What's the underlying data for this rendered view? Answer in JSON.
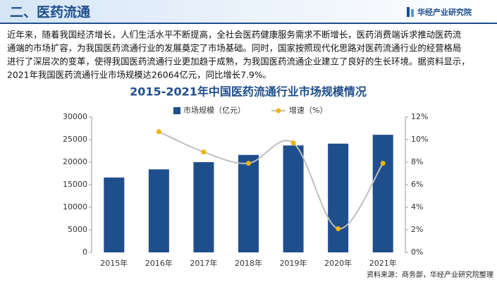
{
  "header": {
    "title": "二、医药流通",
    "brand": "华经产业研究院"
  },
  "paragraph": [
    "近年来，随着我国经济增长，人们生活水平不断提高，全社会医药健康服务需求不断增长，医药消费端诉求推动医药流",
    "通端的市场扩容，为我国医药流通行业的发展奠定了市场基础。同时，国家按照现代化思路对医药流通行业的经营格局",
    "进行了深层次的变革，使得我国医药流通行业更加趋于成熟，为我国医药流通企业建立了良好的生长环境。据资料显示，",
    "2021年我国医药流通行业市场规模达26064亿元，同比增长7.9%。"
  ],
  "chart_data": {
    "type": "bar",
    "title": "2015-2021年中国医药流通行业市场规模情况",
    "categories": [
      "2015年",
      "2016年",
      "2017年",
      "2018年",
      "2019年",
      "2020年",
      "2021年"
    ],
    "series": [
      {
        "name": "市场规模（亿元）",
        "color": "#1f4e8c",
        "values": [
          16600,
          18400,
          20000,
          21600,
          23700,
          24100,
          26064
        ]
      },
      {
        "name": "增速（%）",
        "color": "#f0b400",
        "line_color": "#bfbfbf",
        "axis": "y2",
        "values": [
          null,
          10.7,
          8.9,
          7.9,
          9.7,
          2.1,
          7.9
        ]
      }
    ],
    "ylim": [
      0,
      30000
    ],
    "yticks": [
      0,
      5000,
      10000,
      15000,
      20000,
      25000,
      30000
    ],
    "y2lim": [
      0,
      12
    ],
    "y2ticks": [
      {
        "value": 0,
        "label": "0%"
      },
      {
        "value": 2,
        "label": "2%"
      },
      {
        "value": 4,
        "label": "4%"
      },
      {
        "value": 6,
        "label": "6%"
      },
      {
        "value": 8,
        "label": "8%"
      },
      {
        "value": 10,
        "label": "10%"
      },
      {
        "value": 12,
        "label": "12%"
      }
    ],
    "source": "资料来源：商务部，华经产业研究院整理"
  }
}
